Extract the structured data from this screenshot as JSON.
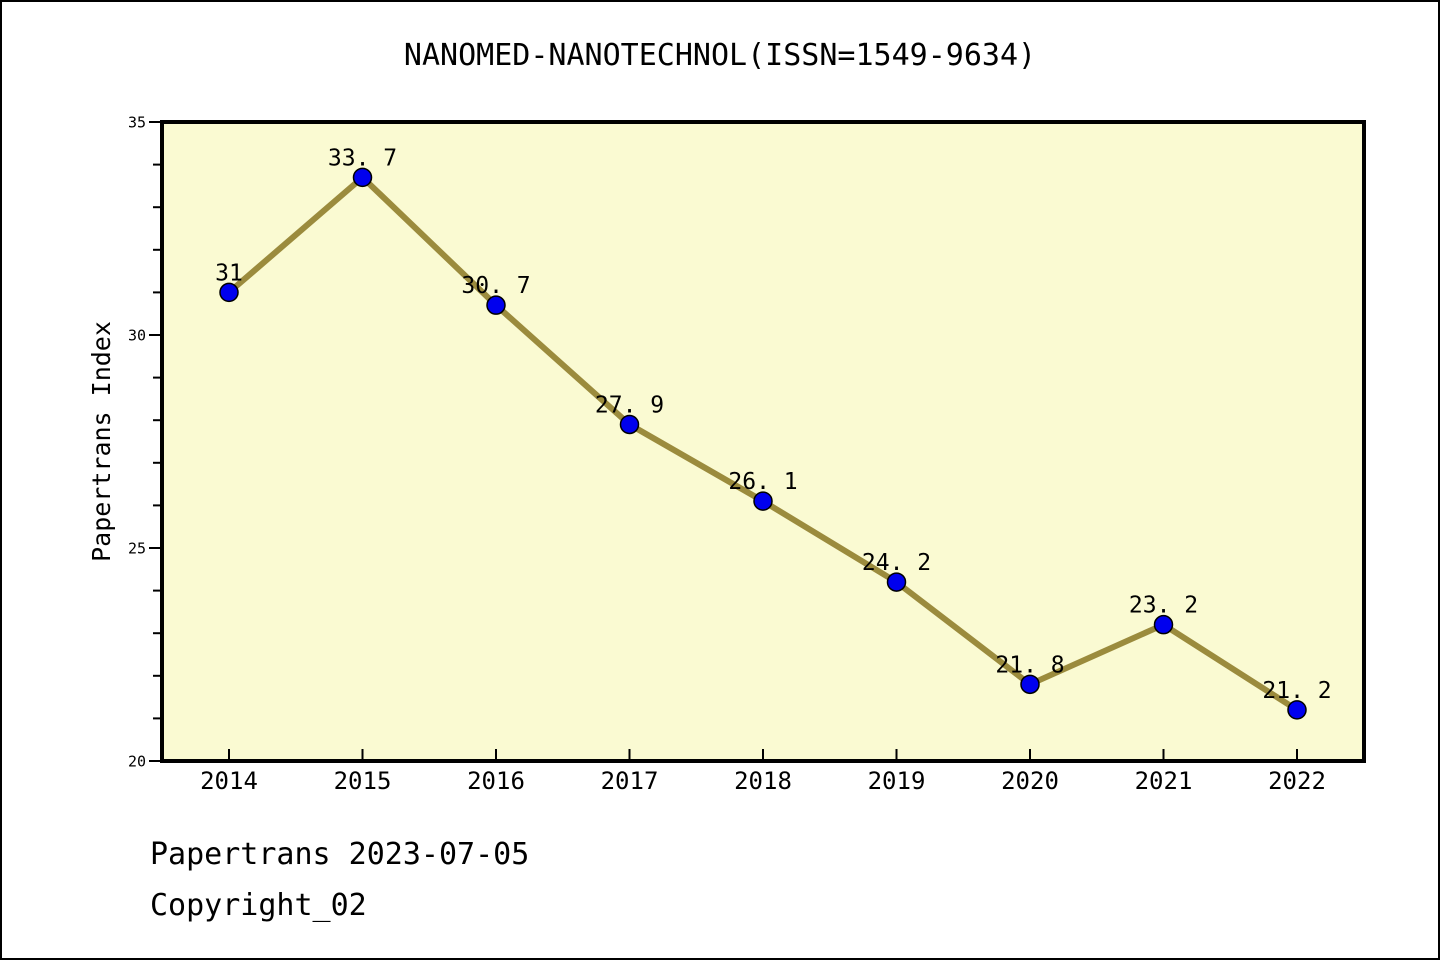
{
  "window": {
    "background": "#ffffff",
    "border_color": "#000000"
  },
  "chart_data": {
    "type": "line",
    "title": "NANOMED-NANOTECHNOL(ISSN=1549-9634)",
    "xlabel": "",
    "ylabel": "Papertrans Index",
    "categories": [
      "2014",
      "2015",
      "2016",
      "2017",
      "2018",
      "2019",
      "2020",
      "2021",
      "2022"
    ],
    "values": [
      31,
      33.7,
      30.7,
      27.9,
      26.1,
      24.2,
      21.8,
      23.2,
      21.2
    ],
    "point_labels": [
      "31",
      "33. 7",
      "30. 7",
      "27. 9",
      "26. 1",
      "24. 2",
      "21. 8",
      "23. 2",
      "21. 2"
    ],
    "ylim": [
      20,
      35
    ],
    "ytick_major": [
      20,
      25,
      30,
      35
    ],
    "ytick_minor_step": 1,
    "grid": "off",
    "legend": "none",
    "colors": {
      "plot_bg": "#FAFAD2",
      "line": "#9B8B3D",
      "marker_fill": "#0000EE",
      "marker_edge": "#000000",
      "axis": "#000000",
      "text": "#000000"
    }
  },
  "footer": {
    "line1": "Papertrans 2023-07-05",
    "line2": "Copyright_02"
  }
}
